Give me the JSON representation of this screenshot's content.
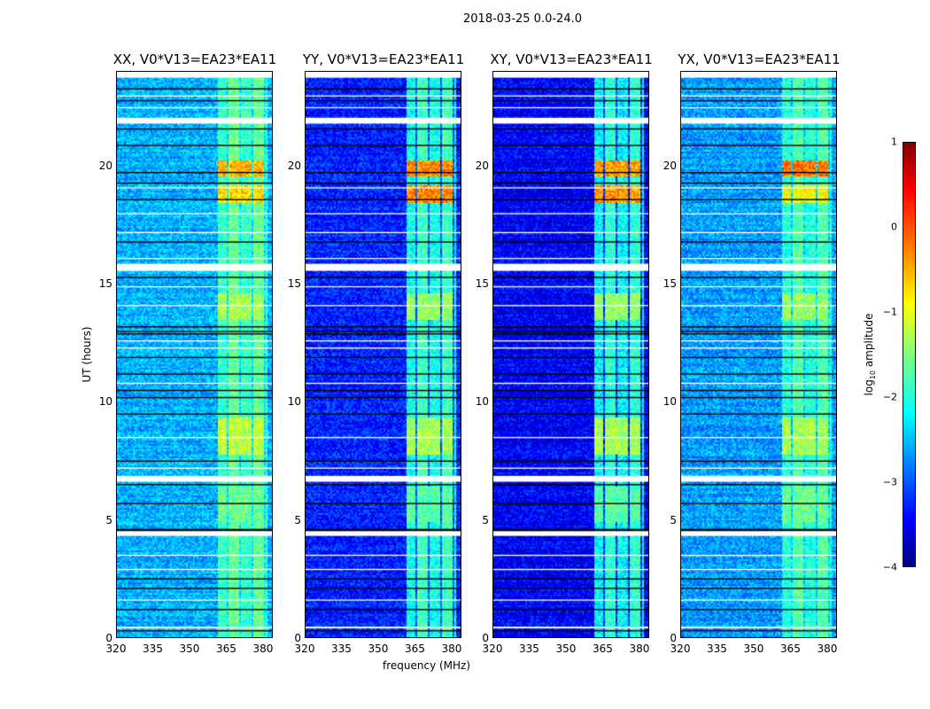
{
  "chart_data": {
    "type": "heatmap",
    "title": "2018-03-25 0.0-24.0",
    "xlabel": "frequency (MHz)",
    "ylabel": "UT (hours)",
    "xlim": [
      320,
      384
    ],
    "ylim": [
      0,
      24
    ],
    "xticks": [
      "320",
      "335",
      "350",
      "365",
      "380"
    ],
    "yticks": [
      "0",
      "5",
      "10",
      "15",
      "20"
    ],
    "colorbar": {
      "label_main": "log",
      "label_sub": "10",
      "label_rest": " amplitude",
      "range": [
        -4,
        1
      ],
      "ticks": [
        "1",
        "0",
        "−1",
        "−2",
        "−3",
        "−4"
      ],
      "colormap": "jet"
    },
    "panels": [
      {
        "title": "XX, V0*V13=EA23*EA11",
        "base_level": -2.5,
        "band_level": -1.7
      },
      {
        "title": "YY, V0*V13=EA23*EA11",
        "base_level": -3.2,
        "band_level": -1.9
      },
      {
        "title": "XY, V0*V13=EA23*EA11",
        "base_level": -3.4,
        "band_level": -2.0
      },
      {
        "title": "YX, V0*V13=EA23*EA11",
        "base_level": -2.6,
        "band_level": -1.8
      }
    ],
    "rfi_band_mhz": [
      361,
      382
    ],
    "bursts": [
      {
        "t": [
          19.6,
          20.3
        ],
        "level": [
          -0.5,
          -0.3,
          -0.4,
          -0.2
        ]
      },
      {
        "t": [
          18.5,
          19.2
        ],
        "level": [
          -0.7,
          -0.3,
          -0.4,
          -0.9
        ]
      },
      {
        "t": [
          13.5,
          14.6
        ],
        "level": [
          -1.3,
          -1.4,
          -1.4,
          -1.4
        ]
      },
      {
        "t": [
          7.8,
          9.4
        ],
        "level": [
          -1.2,
          -1.3,
          -1.3,
          -1.3
        ]
      },
      {
        "t": [
          4.9,
          6.4
        ],
        "level": [
          -1.6,
          -1.7,
          -1.7,
          -1.6
        ]
      }
    ],
    "burst_channels_mhz": [
      [
        361,
        365
      ],
      [
        366,
        370.5
      ],
      [
        371,
        375
      ],
      [
        376,
        380
      ]
    ],
    "flagged_hours": [
      [
        23.75,
        24.0
      ],
      [
        21.8,
        22.05
      ],
      [
        15.55,
        15.85
      ],
      [
        6.6,
        6.85
      ],
      [
        4.3,
        4.5
      ],
      [
        0.4,
        0.45
      ]
    ],
    "thin_flag_hours": [
      23.0,
      22.5,
      19.1,
      18.0,
      17.2,
      16.1,
      14.9,
      14.1,
      12.6,
      12.3,
      10.8,
      8.5,
      7.2,
      3.5,
      2.9,
      1.6
    ],
    "dark_line_hours": [
      23.3,
      22.8,
      21.6,
      20.9,
      19.75,
      19.3,
      18.6,
      16.8,
      15.3,
      13.2,
      13.0,
      12.9,
      11.9,
      11.2,
      10.5,
      10.2,
      9.5,
      7.5,
      6.5,
      5.7,
      4.6,
      4.55,
      2.5,
      2.1,
      1.2,
      0.3
    ]
  }
}
